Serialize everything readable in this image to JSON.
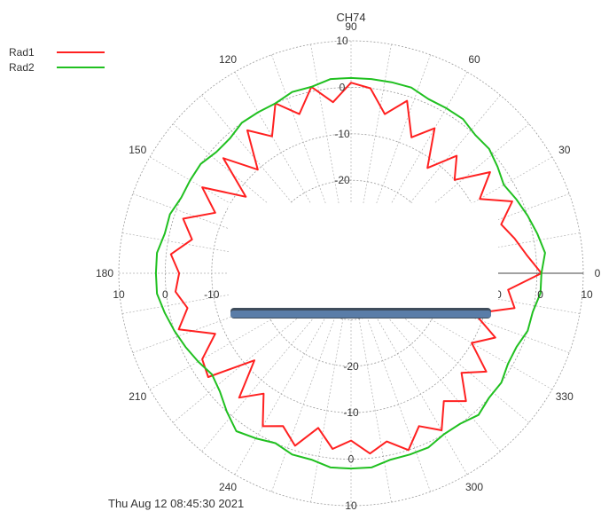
{
  "chart_data": {
    "type": "polar-line",
    "title": "CH74",
    "timestamp": "Thu Aug 12 08:45:30 2021",
    "r_range": [
      -40,
      10
    ],
    "ring_labels": [
      "10",
      "0",
      "-10",
      "-20"
    ],
    "angle_labels": [
      "0",
      "30",
      "60",
      "90",
      "120",
      "150",
      "180",
      "210",
      "240",
      "270",
      "300",
      "330"
    ],
    "legend_placement": "top-left",
    "series": [
      {
        "name": "Rad1",
        "color": "#ff2020",
        "angles": [
          0,
          6,
          12,
          18,
          24,
          30,
          36,
          42,
          48,
          54,
          60,
          66,
          72,
          78,
          84,
          90,
          96,
          102,
          108,
          114,
          120,
          126,
          132,
          138,
          144,
          150,
          156,
          162,
          168,
          174,
          180,
          186,
          192,
          198,
          204,
          210,
          216,
          222,
          228,
          234,
          240,
          246,
          252,
          258,
          264,
          270,
          276,
          282,
          288,
          294,
          300,
          306,
          312,
          318,
          324,
          330,
          336,
          342,
          348,
          354
        ],
        "r": [
          1,
          -2,
          -4,
          -6,
          -2,
          -8,
          -3,
          -10,
          -6,
          -12,
          -4,
          -8,
          -1,
          -5,
          0,
          1,
          -3,
          1,
          -4,
          0,
          -6,
          -2,
          -10,
          -3,
          -12,
          -3,
          -8,
          -2,
          -5,
          -1,
          -3,
          -2,
          -4,
          -1,
          -8,
          -3,
          -2,
          -12,
          -4,
          -8,
          -2,
          -4,
          -1,
          -6,
          -2,
          -4,
          -1,
          -3,
          0,
          -4,
          -1,
          -6,
          -3,
          -8,
          -4,
          -10,
          -6,
          -12,
          -4,
          -6
        ]
      },
      {
        "name": "Rad2",
        "color": "#20c020",
        "angles": [
          0,
          6,
          12,
          18,
          24,
          30,
          36,
          42,
          48,
          54,
          60,
          66,
          72,
          78,
          84,
          90,
          96,
          102,
          108,
          114,
          120,
          126,
          132,
          138,
          144,
          150,
          156,
          162,
          168,
          174,
          180,
          186,
          192,
          198,
          204,
          210,
          216,
          222,
          228,
          234,
          240,
          246,
          252,
          258,
          264,
          270,
          276,
          282,
          288,
          294,
          300,
          306,
          312,
          318,
          324,
          330,
          336,
          342,
          348,
          354
        ],
        "r": [
          1,
          2,
          1,
          0,
          -1,
          -2,
          -1,
          0,
          0,
          1,
          1,
          1,
          2,
          2,
          2,
          2,
          2,
          1,
          1,
          0,
          0,
          0,
          -1,
          -1,
          0,
          0,
          0,
          1,
          1,
          2,
          2,
          2,
          1,
          0,
          -1,
          -2,
          -3,
          -2,
          0,
          2,
          1,
          0,
          1,
          1,
          2,
          2,
          2,
          1,
          1,
          1,
          0,
          0,
          1,
          0,
          0,
          -1,
          -1,
          0,
          0,
          1
        ]
      }
    ],
    "grid": true
  }
}
